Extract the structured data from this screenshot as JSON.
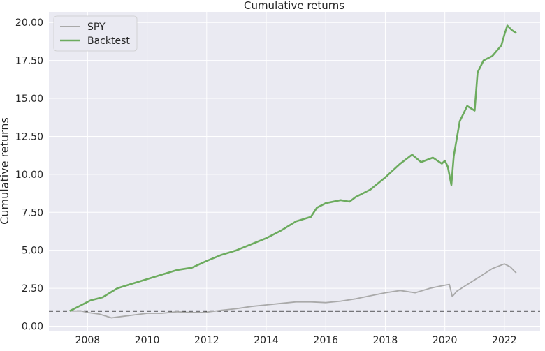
{
  "chart_data": {
    "type": "line",
    "title": "Cumulative returns",
    "xlabel": "",
    "ylabel": "Cumulative returns",
    "xlim": [
      2006.7,
      2023.2
    ],
    "ylim": [
      -0.3,
      20.7
    ],
    "xticks": [
      2008,
      2010,
      2012,
      2014,
      2016,
      2018,
      2020,
      2022
    ],
    "yticks": [
      0.0,
      2.5,
      5.0,
      7.5,
      10.0,
      12.5,
      15.0,
      17.5,
      20.0
    ],
    "ytick_labels": [
      "0.00",
      "2.50",
      "5.00",
      "7.50",
      "10.00",
      "12.50",
      "15.00",
      "17.50",
      "20.00"
    ],
    "grid": true,
    "legend_position": "top-left",
    "reference_line": {
      "y": 1.0,
      "style": "dashed",
      "color": "#000000"
    },
    "series": [
      {
        "name": "SPY",
        "color": "#a9a9a9",
        "x": [
          2007.4,
          2007.8,
          2008.0,
          2008.4,
          2008.8,
          2009.2,
          2009.6,
          2010.0,
          2010.5,
          2011.0,
          2011.5,
          2011.9,
          2012.5,
          2013.0,
          2013.5,
          2014.0,
          2014.5,
          2015.0,
          2015.5,
          2016.0,
          2016.5,
          2017.0,
          2017.5,
          2018.0,
          2018.5,
          2019.0,
          2019.5,
          2020.0,
          2020.15,
          2020.25,
          2020.4,
          2020.8,
          2021.2,
          2021.6,
          2022.0,
          2022.2,
          2022.4
        ],
        "y": [
          1.0,
          1.0,
          0.9,
          0.8,
          0.55,
          0.65,
          0.75,
          0.85,
          0.85,
          0.95,
          0.9,
          0.9,
          1.05,
          1.15,
          1.3,
          1.4,
          1.5,
          1.6,
          1.6,
          1.55,
          1.65,
          1.8,
          2.0,
          2.2,
          2.35,
          2.2,
          2.5,
          2.7,
          2.75,
          1.95,
          2.3,
          2.8,
          3.3,
          3.8,
          4.1,
          3.9,
          3.5
        ]
      },
      {
        "name": "Backtest",
        "color": "#6cab5e",
        "x": [
          2007.4,
          2007.8,
          2008.1,
          2008.5,
          2009.0,
          2009.5,
          2010.0,
          2010.5,
          2011.0,
          2011.5,
          2012.0,
          2012.5,
          2013.0,
          2013.5,
          2014.0,
          2014.5,
          2015.0,
          2015.5,
          2015.7,
          2016.0,
          2016.5,
          2016.8,
          2017.0,
          2017.5,
          2018.0,
          2018.5,
          2018.9,
          2019.2,
          2019.6,
          2019.9,
          2020.0,
          2020.1,
          2020.22,
          2020.3,
          2020.5,
          2020.75,
          2021.0,
          2021.1,
          2021.3,
          2021.6,
          2021.9,
          2022.0,
          2022.1,
          2022.25,
          2022.4
        ],
        "y": [
          1.0,
          1.4,
          1.7,
          1.9,
          2.5,
          2.8,
          3.1,
          3.4,
          3.7,
          3.85,
          4.3,
          4.7,
          5.0,
          5.4,
          5.8,
          6.3,
          6.9,
          7.2,
          7.8,
          8.1,
          8.3,
          8.2,
          8.5,
          9.0,
          9.8,
          10.7,
          11.3,
          10.8,
          11.1,
          10.7,
          10.9,
          10.5,
          9.3,
          11.2,
          13.5,
          14.5,
          14.2,
          16.7,
          17.5,
          17.8,
          18.5,
          19.2,
          19.8,
          19.5,
          19.3
        ]
      }
    ]
  }
}
